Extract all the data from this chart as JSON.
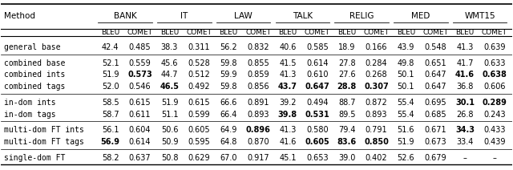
{
  "title": "",
  "col_headers_top": [
    "",
    "BANK",
    "",
    "IT",
    "",
    "LAW",
    "",
    "TALK",
    "",
    "RELIG",
    "",
    "MED",
    "",
    "WMT15",
    ""
  ],
  "col_headers_sub": [
    "Method",
    "BLEU",
    "COMET",
    "BLEU",
    "COMET",
    "BLEU",
    "COMET",
    "BLEU",
    "COMET",
    "BLEU",
    "COMET",
    "BLEU",
    "COMET",
    "BLEU",
    "COMET"
  ],
  "domain_labels": [
    "BANK",
    "IT",
    "LAW",
    "TALK",
    "RELIG",
    "MED",
    "WMT15"
  ],
  "rows": [
    {
      "method": "general base",
      "values": [
        "42.4",
        "0.485",
        "38.3",
        "0.311",
        "56.2",
        "0.832",
        "40.6",
        "0.585",
        "18.9",
        "0.166",
        "43.9",
        "0.548",
        "41.3",
        "0.639"
      ],
      "bold": []
    },
    {
      "method": "combined base",
      "values": [
        "52.1",
        "0.559",
        "45.6",
        "0.528",
        "59.8",
        "0.855",
        "41.5",
        "0.614",
        "27.8",
        "0.284",
        "49.8",
        "0.651",
        "41.7",
        "0.633"
      ],
      "bold": []
    },
    {
      "method": "combined ints",
      "values": [
        "51.9",
        "0.573",
        "44.7",
        "0.512",
        "59.9",
        "0.859",
        "41.3",
        "0.610",
        "27.6",
        "0.268",
        "50.1",
        "0.647",
        "41.6",
        "0.638"
      ],
      "bold": [
        1,
        12,
        13
      ]
    },
    {
      "method": "combined tags",
      "values": [
        "52.0",
        "0.546",
        "46.5",
        "0.492",
        "59.8",
        "0.856",
        "43.7",
        "0.647",
        "28.8",
        "0.307",
        "50.1",
        "0.647",
        "36.8",
        "0.606"
      ],
      "bold": [
        2,
        6,
        7,
        8,
        9
      ]
    },
    {
      "method": "in-dom ints",
      "values": [
        "58.5",
        "0.615",
        "51.9",
        "0.615",
        "66.6",
        "0.891",
        "39.2",
        "0.494",
        "88.7",
        "0.872",
        "55.4",
        "0.695",
        "30.1",
        "0.289"
      ],
      "bold": [
        12,
        13
      ]
    },
    {
      "method": "in-dom tags",
      "values": [
        "58.7",
        "0.611",
        "51.1",
        "0.599",
        "66.4",
        "0.893",
        "39.8",
        "0.531",
        "89.5",
        "0.893",
        "55.4",
        "0.685",
        "26.8",
        "0.243"
      ],
      "bold": [
        6,
        7
      ]
    },
    {
      "method": "multi-dom FT ints",
      "values": [
        "56.1",
        "0.604",
        "50.6",
        "0.605",
        "64.9",
        "0.896",
        "41.3",
        "0.580",
        "79.4",
        "0.791",
        "51.6",
        "0.671",
        "34.3",
        "0.433"
      ],
      "bold": [
        5,
        12
      ]
    },
    {
      "method": "multi-dom FT tags",
      "values": [
        "56.9",
        "0.614",
        "50.9",
        "0.595",
        "64.8",
        "0.870",
        "41.6",
        "0.605",
        "83.6",
        "0.850",
        "51.9",
        "0.673",
        "33.4",
        "0.439"
      ],
      "bold": [
        0,
        7,
        8,
        9
      ]
    },
    {
      "method": "single-dom FT",
      "values": [
        "58.2",
        "0.637",
        "50.8",
        "0.629",
        "67.0",
        "0.917",
        "45.1",
        "0.653",
        "39.0",
        "0.402",
        "52.6",
        "0.679",
        "–",
        "–"
      ],
      "bold": []
    }
  ],
  "group_separators": [
    1,
    4,
    6,
    8
  ],
  "monospace_methods": true,
  "background_color": "#ffffff",
  "font_size": 7.0,
  "header_font_size": 7.5
}
